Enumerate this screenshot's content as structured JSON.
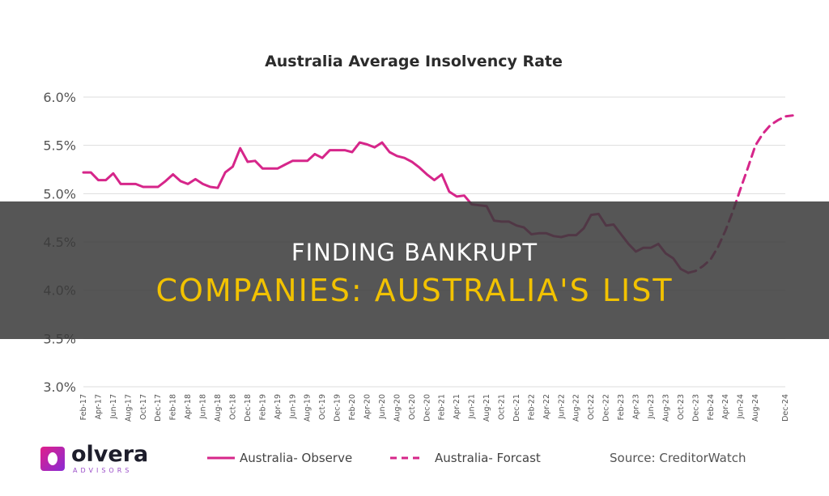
{
  "chart_data": {
    "type": "line",
    "title": "Australia Average Insolvency Rate",
    "y_ticks": [
      "6.0%",
      "5.5%",
      "5.0%",
      "4.5%",
      "4.0%",
      "3.5%",
      "3.0%"
    ],
    "ylim": [
      3.0,
      6.0
    ],
    "x_tick_labels": [
      "Feb-17",
      "Apr-17",
      "Jun-17",
      "Aug-17",
      "Oct-17",
      "Dec-17",
      "Feb-18",
      "Apr-18",
      "Jun-18",
      "Aug-18",
      "Oct-18",
      "Dec-18",
      "Feb-19",
      "Apr-19",
      "Jun-19",
      "Aug-19",
      "Oct-19",
      "Dec-19",
      "Feb-20",
      "Apr-20",
      "Jun-20",
      "Aug-20",
      "Oct-20",
      "Dec-20",
      "Feb-21",
      "Apr-21",
      "Jun-21",
      "Aug-21",
      "Oct-21",
      "Dec-21",
      "Feb-22",
      "Apr-22",
      "Jun-22",
      "Aug-22",
      "Oct-22",
      "Dec-22",
      "Feb-23",
      "Apr-23",
      "Jun-23",
      "Aug-23",
      "Oct-23",
      "Dec-23",
      "Feb-24",
      "Apr-24",
      "Jun-24",
      "Aug-24",
      "Dec-24"
    ],
    "grid": true,
    "series": [
      {
        "name": "Australia- Observe",
        "style": "solid",
        "color": "#d6268a",
        "x": [
          "Feb-17",
          "Mar-17",
          "Apr-17",
          "May-17",
          "Jun-17",
          "Jul-17",
          "Aug-17",
          "Sep-17",
          "Oct-17",
          "Nov-17",
          "Dec-17",
          "Jan-18",
          "Feb-18",
          "Mar-18",
          "Apr-18",
          "May-18",
          "Jun-18",
          "Jul-18",
          "Aug-18",
          "Sep-18",
          "Oct-18",
          "Nov-18",
          "Dec-18",
          "Jan-19",
          "Feb-19",
          "Mar-19",
          "Apr-19",
          "May-19",
          "Jun-19",
          "Jul-19",
          "Aug-19",
          "Sep-19",
          "Oct-19",
          "Nov-19",
          "Dec-19",
          "Jan-20",
          "Feb-20",
          "Mar-20",
          "Apr-20",
          "May-20",
          "Jun-20",
          "Jul-20",
          "Aug-20",
          "Sep-20",
          "Oct-20",
          "Nov-20",
          "Dec-20",
          "Jan-21",
          "Feb-21",
          "Mar-21",
          "Apr-21",
          "May-21",
          "Jun-21",
          "Jul-21",
          "Aug-21",
          "Sep-21",
          "Oct-21",
          "Nov-21",
          "Dec-21",
          "Jan-22",
          "Feb-22",
          "Mar-22",
          "Apr-22",
          "May-22",
          "Jun-22",
          "Jul-22",
          "Aug-22",
          "Sep-22",
          "Oct-22",
          "Nov-22",
          "Dec-22",
          "Jan-23",
          "Feb-23",
          "Mar-23",
          "Apr-23",
          "May-23",
          "Jun-23",
          "Jul-23",
          "Aug-23",
          "Sep-23",
          "Oct-23",
          "Nov-23"
        ],
        "values": [
          5.22,
          5.22,
          5.14,
          5.14,
          5.21,
          5.1,
          5.1,
          5.1,
          5.07,
          5.07,
          5.07,
          5.13,
          5.2,
          5.13,
          5.1,
          5.15,
          5.1,
          5.07,
          5.06,
          5.22,
          5.28,
          5.47,
          5.33,
          5.34,
          5.26,
          5.26,
          5.26,
          5.3,
          5.34,
          5.34,
          5.34,
          5.41,
          5.37,
          5.45,
          5.45,
          5.45,
          5.43,
          5.53,
          5.51,
          5.48,
          5.53,
          5.43,
          5.39,
          5.37,
          5.33,
          5.27,
          5.2,
          5.14,
          5.2,
          5.02,
          4.97,
          4.98,
          4.89,
          4.88,
          4.87,
          4.72,
          4.71,
          4.71,
          4.67,
          4.65,
          4.58,
          4.59,
          4.59,
          4.56,
          4.55,
          4.57,
          4.57,
          4.64,
          4.78,
          4.79,
          4.67,
          4.68,
          4.58,
          4.48,
          4.4,
          4.44,
          4.44,
          4.48,
          4.38,
          4.33,
          4.22,
          4.18
        ]
      },
      {
        "name": "Australia- Forcast",
        "style": "dashed",
        "color": "#d6268a",
        "x": [
          "Nov-23",
          "Dec-23",
          "Jan-24",
          "Feb-24",
          "Mar-24",
          "Apr-24",
          "May-24",
          "Jun-24",
          "Jul-24",
          "Aug-24",
          "Sep-24",
          "Oct-24",
          "Nov-24",
          "Dec-24",
          "Jan-25"
        ],
        "values": [
          4.18,
          4.2,
          4.25,
          4.32,
          4.45,
          4.62,
          4.82,
          5.05,
          5.27,
          5.5,
          5.62,
          5.71,
          5.76,
          5.8,
          5.81
        ]
      }
    ],
    "legend_position": "bottom",
    "source": "Source: CreditorWatch"
  },
  "logo": {
    "name": "olvera",
    "subtitle": "ADVISORS"
  },
  "overlay": {
    "line1": "FINDING BANKRUPT",
    "line2": "COMPANIES: AUSTRALIA'S LIST"
  },
  "colors": {
    "line": "#d6268a",
    "grid": "#dddddd",
    "overlay_bg": "#3a3a3a",
    "overlay_line1": "#ffffff",
    "overlay_line2": "#f2c200"
  }
}
